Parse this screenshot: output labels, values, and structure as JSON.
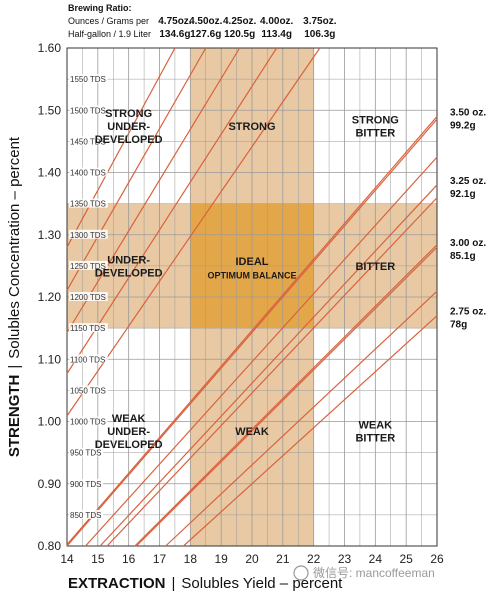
{
  "chart_data": {
    "type": "line",
    "brewing_ratio_header": {
      "title": "Brewing Ratio:",
      "line1": "Ounces / Grams per",
      "line2": "Half-gallon / 1.9 Liter"
    },
    "xlabel_bold": "EXTRACTION",
    "xlabel_rest": "Solubles Yield – percent",
    "ylabel_bold": "STRENGTH",
    "ylabel_rest": "Solubles Concentration – percent",
    "axis_separator": "|",
    "xlim": [
      14,
      26
    ],
    "ylim": [
      0.8,
      1.6
    ],
    "x_ticks": [
      "14",
      "15",
      "16",
      "17",
      "18",
      "19",
      "20",
      "21",
      "22",
      "23",
      "24",
      "25",
      "26"
    ],
    "y_ticks": [
      "0.80",
      "0.90",
      "1.00",
      "1.10",
      "1.20",
      "1.30",
      "1.40",
      "1.50",
      "1.60"
    ],
    "grid": true,
    "tds_labels": [
      {
        "y": 0.85,
        "label": "850 TDS"
      },
      {
        "y": 0.9,
        "label": "900 TDS"
      },
      {
        "y": 0.95,
        "label": "950 TDS"
      },
      {
        "y": 1.0,
        "label": "1000 TDS"
      },
      {
        "y": 1.05,
        "label": "1050 TDS"
      },
      {
        "y": 1.1,
        "label": "1100 TDS"
      },
      {
        "y": 1.15,
        "label": "1150 TDS"
      },
      {
        "y": 1.2,
        "label": "1200 TDS"
      },
      {
        "y": 1.25,
        "label": "1250 TDS"
      },
      {
        "y": 1.3,
        "label": "1300 TDS"
      },
      {
        "y": 1.35,
        "label": "1350 TDS"
      },
      {
        "y": 1.4,
        "label": "1400 TDS"
      },
      {
        "y": 1.45,
        "label": "1450 TDS"
      },
      {
        "y": 1.5,
        "label": "1500 TDS"
      },
      {
        "y": 1.55,
        "label": "1550 TDS"
      }
    ],
    "ideal_band": {
      "x": [
        18,
        22
      ],
      "y": [
        1.15,
        1.35
      ]
    },
    "colors": {
      "band": "#e8c9a3",
      "ideal": "#e3a74a",
      "lines": "#d9623e",
      "grid": "#9a9a9a"
    },
    "ratio_lines": [
      {
        "top_ounces": "4.75oz.",
        "top_grams": "134.6g",
        "x_at_top": 17.5
      },
      {
        "top_ounces": "4.50oz.",
        "top_grams": "127.6g",
        "x_at_top": 18.5
      },
      {
        "top_ounces": "4.25oz.",
        "top_grams": "120.5g",
        "x_at_top": 19.6
      },
      {
        "top_ounces": "4.00oz.",
        "top_grams": "113.4g",
        "x_at_top": 20.8
      },
      {
        "top_ounces": "3.75oz.",
        "top_grams": "106.3g",
        "x_at_top": 22.2
      },
      {
        "right_ounces": "3.50 oz.",
        "right_grams": "99.2g",
        "y_at_right": 1.49
      },
      {
        "right_ounces": "3.25 oz.",
        "right_grams": "92.1g",
        "y_at_right": 1.38
      },
      {
        "right_ounces": "3.00 oz.",
        "right_grams": "85.1g",
        "y_at_right": 1.28
      },
      {
        "right_ounces": "2.75 oz.",
        "right_grams": "78g",
        "y_at_right": 1.17
      }
    ],
    "extra_lines": [
      {
        "x_at_bottom": 14.0
      },
      {
        "x_at_bottom": 14.6
      },
      {
        "x_at_bottom": 15.3
      },
      {
        "x_at_bottom": 16.2
      },
      {
        "x_at_bottom": 17.2
      }
    ],
    "regions": [
      {
        "lines": [
          "STRONG",
          "UNDER-",
          "DEVELOPED"
        ],
        "x": 16.0,
        "y": 1.475
      },
      {
        "lines": [
          "STRONG"
        ],
        "x": 20.0,
        "y": 1.475
      },
      {
        "lines": [
          "STRONG",
          "BITTER"
        ],
        "x": 24.0,
        "y": 1.475
      },
      {
        "lines": [
          "UNDER-",
          "DEVELOPED"
        ],
        "x": 16.0,
        "y": 1.25
      },
      {
        "lines": [
          "IDEAL"
        ],
        "x": 20.0,
        "y": 1.258
      },
      {
        "lines": [
          "OPTIMUM BALANCE"
        ],
        "x": 20.0,
        "y": 1.236,
        "small": true
      },
      {
        "lines": [
          "BITTER"
        ],
        "x": 24.0,
        "y": 1.25
      },
      {
        "lines": [
          "WEAK",
          "UNDER-",
          "DEVELOPED"
        ],
        "x": 16.0,
        "y": 0.985
      },
      {
        "lines": [
          "WEAK"
        ],
        "x": 20.0,
        "y": 0.985
      },
      {
        "lines": [
          "WEAK",
          "BITTER"
        ],
        "x": 24.0,
        "y": 0.985
      }
    ]
  },
  "watermark": "微信号: mancoffeeman"
}
